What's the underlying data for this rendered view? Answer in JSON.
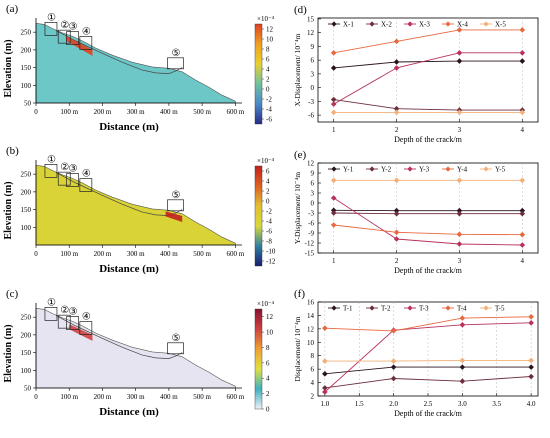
{
  "figure": {
    "colors": {
      "X-1": "#2a1420",
      "X-2": "#6e2f3c",
      "X-3": "#b8325a",
      "X-4": "#e8683f",
      "X-5": "#f2b078"
    }
  },
  "chart_data": [
    {
      "type": "heatmap",
      "panel": "(a)",
      "ylabel": "Elevation (m)",
      "xlabel": "Distance (m)",
      "x_ticks": [
        "0",
        "100 m",
        "200 m",
        "300 m",
        "400 m",
        "500 m",
        "600 m"
      ],
      "y_ticks": [
        "50",
        "100",
        "150",
        "200",
        "250"
      ],
      "xlim": [
        0,
        620
      ],
      "ylim": [
        50,
        290
      ],
      "colorbar": {
        "scale_label": "×10⁻⁴",
        "ticks": [
          "12",
          "10",
          "8",
          "6",
          "4",
          "2",
          "0",
          "-2",
          "-4",
          "-6"
        ],
        "min": -7,
        "max": 13
      },
      "fill_color": "#6ec7c7",
      "markers": [
        "①",
        "②",
        "③",
        "④",
        "⑤"
      ]
    },
    {
      "type": "heatmap",
      "panel": "(b)",
      "ylabel": "Elevation (m)",
      "xlabel": "Distance (m)",
      "x_ticks": [
        "0",
        "100 m",
        "200 m",
        "300 m",
        "400 m",
        "500 m",
        "600 m"
      ],
      "y_ticks": [
        "100",
        "150",
        "200",
        "250"
      ],
      "xlim": [
        0,
        620
      ],
      "ylim": [
        50,
        290
      ],
      "colorbar": {
        "scale_label": "×10⁻⁴",
        "ticks": [
          "6",
          "4",
          "2",
          "0",
          "-2",
          "-4",
          "-6",
          "-8",
          "-10",
          "-12"
        ],
        "min": -13,
        "max": 7
      },
      "fill_color": "#d9d338",
      "markers": [
        "①",
        "②",
        "③",
        "④",
        "⑤"
      ]
    },
    {
      "type": "heatmap",
      "panel": "(c)",
      "ylabel": "Elevation (m)",
      "xlabel": "Distance (m)",
      "x_ticks": [
        "0",
        "100 m",
        "200 m",
        "300 m",
        "400 m",
        "500 m",
        "600 m"
      ],
      "y_ticks": [
        "50",
        "100",
        "150",
        "200",
        "250"
      ],
      "xlim": [
        0,
        620
      ],
      "ylim": [
        50,
        290
      ],
      "colorbar": {
        "scale_label": "×10⁻⁴",
        "ticks": [
          "12",
          "10",
          "8",
          "6",
          "4",
          "2",
          "0"
        ],
        "min": 0,
        "max": 13
      },
      "fill_color": "#e6e4f0",
      "markers": [
        "①",
        "②",
        "③",
        "④",
        "⑤"
      ]
    },
    {
      "type": "line",
      "panel": "(d)",
      "ylabel": "X-Displacement/ 10⁻⁴m",
      "xlabel": "Depth of the crack/m",
      "x": [
        1,
        2,
        3,
        4
      ],
      "x_ticks": [
        "1",
        "2",
        "3",
        "4"
      ],
      "xlim": [
        0.75,
        4.25
      ],
      "y_ticks": [
        "-6",
        "-3",
        "0",
        "3",
        "6",
        "9",
        "12",
        "15"
      ],
      "ylim": [
        -7.5,
        15.2
      ],
      "legend": "top",
      "series": [
        {
          "name": "X-1",
          "values": [
            4.3,
            5.6,
            5.8,
            5.8
          ],
          "color": "#2a1420"
        },
        {
          "name": "X-2",
          "values": [
            -2.6,
            -4.6,
            -4.9,
            -4.9
          ],
          "color": "#6e2f3c"
        },
        {
          "name": "X-3",
          "values": [
            -3.6,
            4.3,
            7.6,
            7.6
          ],
          "color": "#b8325a"
        },
        {
          "name": "X-4",
          "values": [
            7.6,
            10.1,
            12.6,
            12.6
          ],
          "color": "#e8683f"
        },
        {
          "name": "X-5",
          "values": [
            -5.4,
            -5.4,
            -5.4,
            -5.4
          ],
          "color": "#f2b078"
        }
      ]
    },
    {
      "type": "line",
      "panel": "(e)",
      "ylabel": "Y-Displacement/ 10⁻⁴m",
      "xlabel": "Depth of the crack/m",
      "x": [
        1,
        2,
        3,
        4
      ],
      "x_ticks": [
        "1",
        "2",
        "3",
        "4"
      ],
      "xlim": [
        0.75,
        4.25
      ],
      "y_ticks": [
        "-15",
        "-12",
        "-9",
        "-6",
        "-3",
        "0",
        "3",
        "6",
        "9",
        "12"
      ],
      "ylim": [
        -15,
        12
      ],
      "legend": "top",
      "series": [
        {
          "name": "Y-1",
          "values": [
            -2.2,
            -2.3,
            -2.3,
            -2.3
          ],
          "color": "#2a1420"
        },
        {
          "name": "Y-2",
          "values": [
            -3.0,
            -3.2,
            -3.2,
            -3.2
          ],
          "color": "#6e2f3c"
        },
        {
          "name": "Y-3",
          "values": [
            1.5,
            -10.8,
            -12.3,
            -12.6
          ],
          "color": "#b8325a"
        },
        {
          "name": "Y-4",
          "values": [
            -6.6,
            -8.8,
            -9.4,
            -9.5
          ],
          "color": "#e8683f"
        },
        {
          "name": "Y-5",
          "values": [
            6.8,
            6.8,
            6.8,
            6.8
          ],
          "color": "#f2b078"
        }
      ]
    },
    {
      "type": "line",
      "panel": "(f)",
      "ylabel": "Displacement/ 10⁻⁴m",
      "xlabel": "Depth of the crack/m",
      "x": [
        1,
        2,
        3,
        4
      ],
      "x_ticks": [
        "1.0",
        "1.5",
        "2.0",
        "2.5",
        "3.0",
        "3.5",
        "4.0"
      ],
      "x_tick_values": [
        1.0,
        1.5,
        2.0,
        2.5,
        3.0,
        3.5,
        4.0
      ],
      "xlim": [
        0.9,
        4.1
      ],
      "y_ticks": [
        "2",
        "4",
        "6",
        "8",
        "10",
        "12",
        "14",
        "16"
      ],
      "ylim": [
        2,
        16
      ],
      "legend": "top",
      "series": [
        {
          "name": "T-1",
          "values": [
            5.3,
            6.3,
            6.3,
            6.3
          ],
          "color": "#2a1420"
        },
        {
          "name": "T-2",
          "values": [
            3.2,
            4.6,
            4.2,
            4.9
          ],
          "color": "#6e2f3c"
        },
        {
          "name": "T-3",
          "values": [
            2.6,
            11.8,
            12.6,
            12.9
          ],
          "color": "#b8325a"
        },
        {
          "name": "T-4",
          "values": [
            12.1,
            11.7,
            13.6,
            13.8
          ],
          "color": "#e8683f"
        },
        {
          "name": "T-5",
          "values": [
            7.2,
            7.2,
            7.3,
            7.3
          ],
          "color": "#f2b078"
        }
      ]
    }
  ]
}
